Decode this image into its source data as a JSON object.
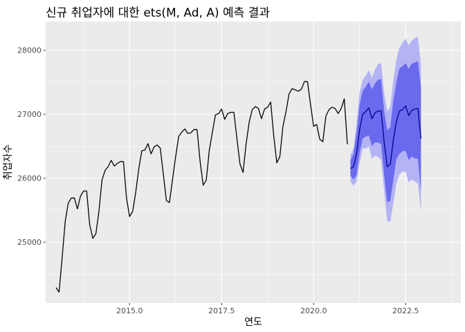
{
  "chart_data": {
    "type": "line",
    "title": "신규 취업자에 대한 ets(M, Ad, A) 예측 결과",
    "xlabel": "연도",
    "ylabel": "취업자수",
    "xlim": [
      2012.72,
      2024.0
    ],
    "ylim": [
      24050,
      28450
    ],
    "x_ticks": [
      2015.0,
      2017.5,
      2020.0,
      2022.5
    ],
    "x_tick_labels": [
      "2015.0",
      "2017.5",
      "2020.0",
      "2022.5"
    ],
    "y_ticks": [
      25000,
      26000,
      27000,
      28000
    ],
    "y_tick_labels": [
      "25000",
      "26000",
      "27000",
      "28000"
    ],
    "grid": true,
    "colors": {
      "panel": "#ebebeb",
      "grid": "#ffffff",
      "actual": "#000000",
      "forecast": "#00008b",
      "band80": "#6a6aee",
      "band95": "#b4b4f5"
    },
    "actual": {
      "start": 2013.0,
      "step": 0.08333,
      "values": [
        24290,
        24220,
        24750,
        25320,
        25610,
        25690,
        25690,
        25520,
        25720,
        25800,
        25800,
        25270,
        25060,
        25130,
        25480,
        25970,
        26120,
        26180,
        26280,
        26190,
        26230,
        26260,
        26260,
        25690,
        25400,
        25480,
        25780,
        26150,
        26430,
        26440,
        26540,
        26380,
        26490,
        26520,
        26470,
        26060,
        25650,
        25620,
        25980,
        26330,
        26650,
        26720,
        26770,
        26700,
        26710,
        26760,
        26760,
        26260,
        25890,
        25970,
        26440,
        26720,
        26990,
        27010,
        27080,
        26920,
        27010,
        27030,
        27030,
        26620,
        26220,
        26090,
        26540,
        26880,
        27070,
        27120,
        27090,
        26930,
        27080,
        27110,
        27190,
        26660,
        26240,
        26340,
        26810,
        27040,
        27320,
        27400,
        27380,
        27360,
        27390,
        27510,
        27510,
        27150,
        26810,
        26840,
        26610,
        26570,
        26970,
        27070,
        27110,
        27090,
        27010,
        27090,
        27240,
        26530
      ]
    },
    "forecast": {
      "start": 2021.0,
      "step": 0.08333,
      "mean": [
        26150,
        26180,
        26380,
        26760,
        27000,
        27040,
        27100,
        26930,
        27020,
        27050,
        27050,
        26560,
        26180,
        26220,
        26600,
        26890,
        27050,
        27070,
        27130,
        26980,
        27060,
        27080,
        27090,
        26620
      ],
      "lo80": [
        26040,
        25980,
        26050,
        26400,
        26620,
        26650,
        26670,
        26500,
        26560,
        26560,
        26530,
        26040,
        25620,
        25650,
        25980,
        26300,
        26380,
        26420,
        26430,
        26280,
        26340,
        26310,
        26300,
        25790
      ],
      "hi80": [
        26280,
        26380,
        26700,
        27150,
        27370,
        27430,
        27510,
        27390,
        27480,
        27540,
        27550,
        27050,
        26750,
        26800,
        27220,
        27510,
        27720,
        27750,
        27800,
        27710,
        27790,
        27810,
        27830,
        27420
      ],
      "lo95": [
        25950,
        25880,
        25950,
        26230,
        26470,
        26460,
        26500,
        26300,
        26350,
        26330,
        26290,
        25790,
        25330,
        25320,
        25610,
        25920,
        26060,
        26100,
        26100,
        25930,
        25980,
        25950,
        25910,
        25480
      ],
      "hi95": [
        26360,
        26470,
        26860,
        27340,
        27540,
        27600,
        27690,
        27570,
        27700,
        27780,
        27800,
        27330,
        27050,
        27110,
        27550,
        27860,
        28040,
        28120,
        28180,
        28080,
        28150,
        28190,
        28210,
        27770
      ]
    }
  }
}
